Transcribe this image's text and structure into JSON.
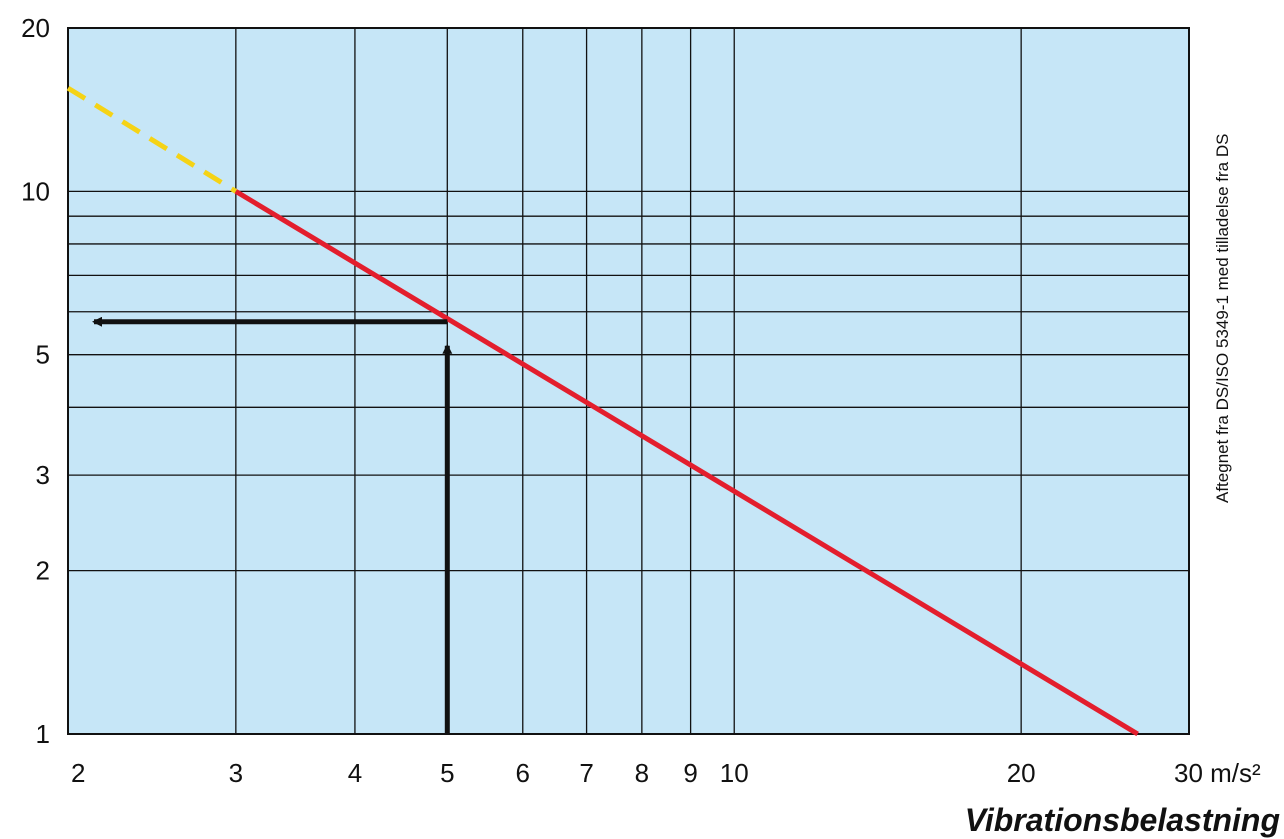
{
  "chart_data": {
    "type": "line",
    "xscale": "log",
    "yscale": "log",
    "xlim": [
      2,
      30
    ],
    "ylim": [
      1,
      20
    ],
    "x_ticks": [
      {
        "value": 2,
        "label": "2"
      },
      {
        "value": 3,
        "label": "3"
      },
      {
        "value": 4,
        "label": "4"
      },
      {
        "value": 5,
        "label": "5"
      },
      {
        "value": 6,
        "label": "6"
      },
      {
        "value": 7,
        "label": "7"
      },
      {
        "value": 8,
        "label": "8"
      },
      {
        "value": 9,
        "label": "9"
      },
      {
        "value": 10,
        "label": "10"
      },
      {
        "value": 20,
        "label": "20"
      },
      {
        "value": 30,
        "label": "30 m/s²"
      }
    ],
    "y_ticks": [
      {
        "value": 1,
        "label": "1"
      },
      {
        "value": 2,
        "label": "2"
      },
      {
        "value": 3,
        "label": "3"
      },
      {
        "value": 5,
        "label": "5"
      },
      {
        "value": 10,
        "label": "10"
      },
      {
        "value": 20,
        "label": "20"
      }
    ],
    "x_gridlines": [
      3,
      4,
      5,
      6,
      7,
      8,
      9,
      10,
      20
    ],
    "y_gridlines": [
      2,
      3,
      4,
      5,
      6,
      7,
      8,
      9,
      10
    ],
    "xlabel": "Vibrationsbelastning",
    "ylabel": "",
    "credit": "Aftegnet fra DS/ISO 5349-1 med tilladelse fra DS",
    "grid": true,
    "series": [
      {
        "style": "dashed",
        "color": "#f5d316",
        "points": [
          [
            2,
            15.5
          ],
          [
            3,
            10
          ]
        ]
      },
      {
        "style": "solid",
        "color": "#e31e2d",
        "points": [
          [
            3,
            10
          ],
          [
            26.5,
            1
          ]
        ]
      }
    ],
    "annotation": {
      "x": 5,
      "y": 5.75,
      "color": "#111111"
    },
    "colors": {
      "plot_background": "#c6e6f7",
      "grid": "#111111"
    }
  }
}
